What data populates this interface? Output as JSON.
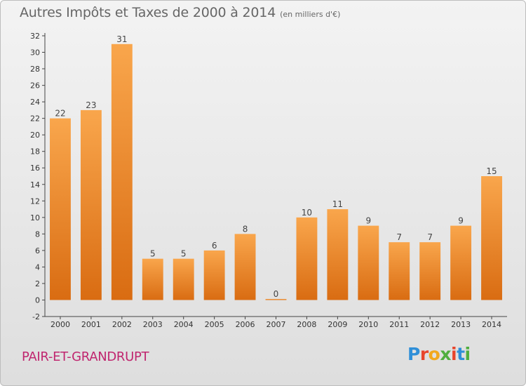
{
  "header": {
    "title": "Autres Impôts et Taxes de 2000 à 2014",
    "unit": "(en milliers d'€)"
  },
  "footer": {
    "commune": "PAIR-ET-GRANDRUPT",
    "logo": "Proxiti"
  },
  "colors": {
    "bar_light": "#f9a64c",
    "bar_dark": "#d96c12",
    "commune_text": "#c0266f",
    "logo_letters": [
      "#2f8fd8",
      "#e8452c",
      "#f2a81d",
      "#4fae3f",
      "#e8452c",
      "#2f8fd8",
      "#4fae3f"
    ]
  },
  "chart_data": {
    "type": "bar",
    "categories": [
      "2000",
      "2001",
      "2002",
      "2003",
      "2004",
      "2005",
      "2006",
      "2007",
      "2008",
      "2009",
      "2010",
      "2011",
      "2012",
      "2013",
      "2014"
    ],
    "values": [
      22,
      23,
      31,
      5,
      5,
      6,
      8,
      0,
      10,
      11,
      9,
      7,
      7,
      9,
      15
    ],
    "ylim": [
      -2,
      32
    ],
    "yticks": [
      -2,
      0,
      2,
      4,
      6,
      8,
      10,
      12,
      14,
      16,
      18,
      20,
      22,
      24,
      26,
      28,
      30,
      32
    ],
    "grid": false,
    "legend": "none"
  }
}
